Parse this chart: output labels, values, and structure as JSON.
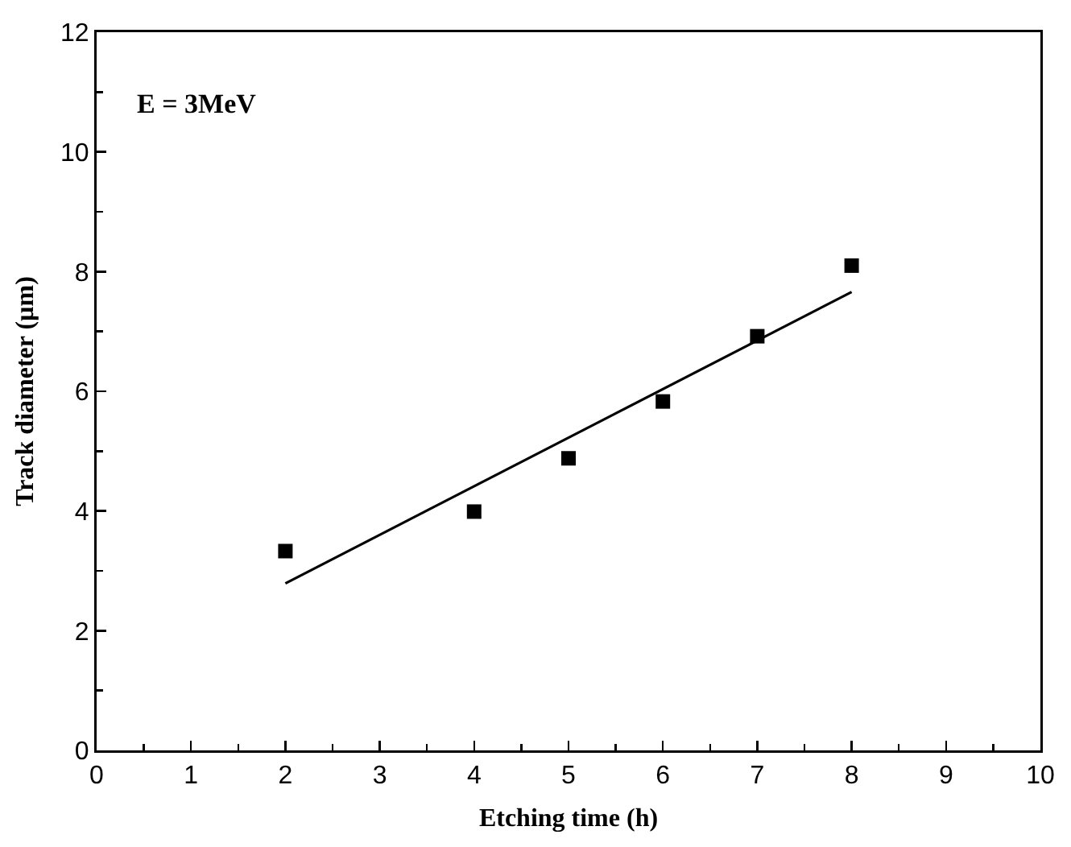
{
  "chart_data": {
    "type": "scatter",
    "xlabel": "Etching time (h)",
    "ylabel": "Track diameter (µm)",
    "annotations": [
      "E = 3MeV"
    ],
    "xlim": [
      0,
      10
    ],
    "xticks": [
      0,
      1,
      2,
      3,
      4,
      5,
      6,
      7,
      8,
      9,
      10
    ],
    "ylim": [
      0,
      12
    ],
    "yticks": [
      0,
      2,
      4,
      6,
      8,
      10,
      12
    ],
    "grid": false,
    "series": [
      {
        "marker": "square",
        "color": "#000000",
        "x": [
          2,
          4,
          5,
          6,
          7,
          8
        ],
        "values": [
          3.33,
          3.99,
          4.88,
          5.83,
          6.92,
          8.1
        ]
      },
      {
        "type": "line",
        "color": "#000000",
        "x": [
          2,
          8
        ],
        "values": [
          2.79,
          7.66
        ],
        "marker": "none",
        "line_style": "solid"
      }
    ]
  }
}
